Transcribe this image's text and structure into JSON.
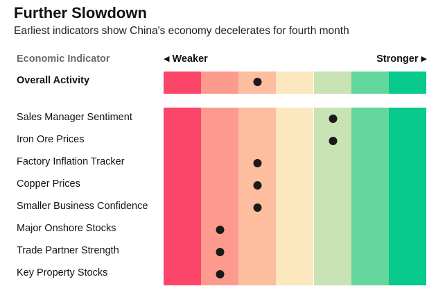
{
  "title": "Further Slowdown",
  "subtitle": "Earliest indicators show China's economy decelerates for fourth month",
  "header": {
    "column_label": "Economic Indicator",
    "weaker_label": "Weaker",
    "stronger_label": "Stronger",
    "left_arrow": "◀",
    "right_arrow": "▶"
  },
  "colors": {
    "scale": [
      "#fb4669",
      "#fc9a8e",
      "#fdbd9f",
      "#fce7bf",
      "#c9e3b4",
      "#63d69d",
      "#06c98b"
    ],
    "dot": "#1a1a1a"
  },
  "chart_data": {
    "type": "table",
    "title": "Further Slowdown",
    "subtitle": "Earliest indicators show China's economy decelerates for fourth month",
    "scale_levels": 7,
    "scale_direction": "Weaker to Stronger",
    "overall": {
      "name": "Overall Activity",
      "level": 3
    },
    "indicators": [
      {
        "name": "Sales Manager Sentiment",
        "level": 5
      },
      {
        "name": "Iron Ore Prices",
        "level": 5
      },
      {
        "name": "Factory Inflation Tracker",
        "level": 3
      },
      {
        "name": "Copper Prices",
        "level": 3
      },
      {
        "name": "Smaller Business Confidence",
        "level": 3
      },
      {
        "name": "Major Onshore Stocks",
        "level": 2
      },
      {
        "name": "Trade Partner Strength",
        "level": 2
      },
      {
        "name": "Key Property Stocks",
        "level": 2
      }
    ]
  }
}
